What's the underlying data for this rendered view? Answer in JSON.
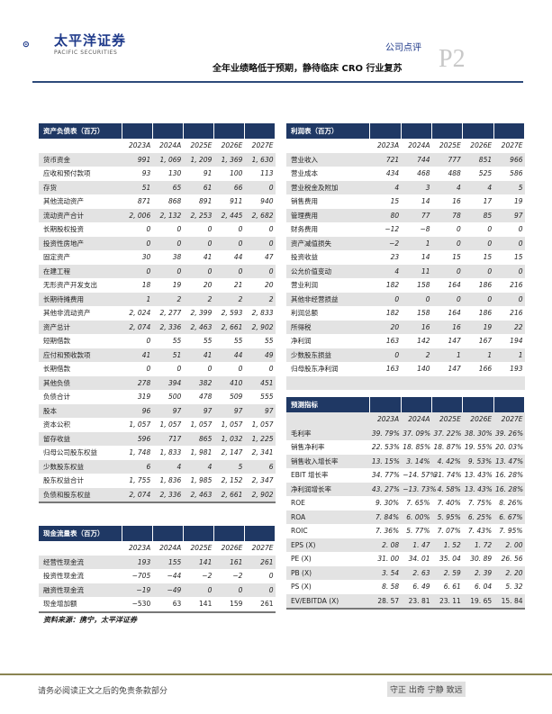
{
  "header": {
    "logo_cn": "太平洋证券",
    "logo_en": "PACIFIC SECURITIES",
    "report_type": "公司点评",
    "subtitle": "全年业绩略低于预期，静待临床 CRO 行业复苏",
    "page": "P2"
  },
  "colors": {
    "header_bg": "#1f3864",
    "shade": "#e3e3e3",
    "logo_red": "#e0262b",
    "logo_blue": "#1f3a8a"
  },
  "years": [
    "2023A",
    "2024A",
    "2025E",
    "2026E",
    "2027E"
  ],
  "balance_sheet": {
    "title": "资产负债表（百万）",
    "rows": [
      [
        "货币资金",
        "991",
        "1, 069",
        "1, 209",
        "1, 369",
        "1, 630"
      ],
      [
        "应收和预付款项",
        "93",
        "130",
        "91",
        "100",
        "113"
      ],
      [
        "存货",
        "51",
        "65",
        "61",
        "66",
        "0"
      ],
      [
        "其他流动资产",
        "871",
        "868",
        "891",
        "911",
        "940"
      ],
      [
        "流动资产合计",
        "2, 006",
        "2, 132",
        "2, 253",
        "2, 445",
        "2, 682"
      ],
      [
        "长期股权投资",
        "0",
        "0",
        "0",
        "0",
        "0"
      ],
      [
        "投资性房地产",
        "0",
        "0",
        "0",
        "0",
        "0"
      ],
      [
        "固定资产",
        "30",
        "38",
        "41",
        "44",
        "47"
      ],
      [
        "在建工程",
        "0",
        "0",
        "0",
        "0",
        "0"
      ],
      [
        "无形资产开发支出",
        "18",
        "19",
        "20",
        "21",
        "20"
      ],
      [
        "长期待摊费用",
        "1",
        "2",
        "2",
        "2",
        "2"
      ],
      [
        "其他非流动资产",
        "2, 024",
        "2, 277",
        "2, 399",
        "2, 593",
        "2, 833"
      ],
      [
        "资产总计",
        "2, 074",
        "2, 336",
        "2, 463",
        "2, 661",
        "2, 902"
      ],
      [
        "短期借款",
        "0",
        "55",
        "55",
        "55",
        "55"
      ],
      [
        "应付和预收款项",
        "41",
        "51",
        "41",
        "44",
        "49"
      ],
      [
        "长期借款",
        "0",
        "0",
        "0",
        "0",
        "0"
      ],
      [
        "其他负债",
        "278",
        "394",
        "382",
        "410",
        "451"
      ],
      [
        "负债合计",
        "319",
        "500",
        "478",
        "509",
        "555"
      ],
      [
        "股本",
        "96",
        "97",
        "97",
        "97",
        "97"
      ],
      [
        "资本公积",
        "1, 057",
        "1, 057",
        "1, 057",
        "1, 057",
        "1, 057"
      ],
      [
        "留存收益",
        "596",
        "717",
        "865",
        "1, 032",
        "1, 225"
      ],
      [
        "归母公司股东权益",
        "1, 748",
        "1, 833",
        "1, 981",
        "2, 147",
        "2, 341"
      ],
      [
        "少数股东权益",
        "6",
        "4",
        "4",
        "5",
        "6"
      ],
      [
        "股东权益合计",
        "1, 755",
        "1, 836",
        "1, 985",
        "2, 152",
        "2, 347"
      ],
      [
        "负债和股东权益",
        "2, 074",
        "2, 336",
        "2, 463",
        "2, 661",
        "2, 902"
      ]
    ]
  },
  "cash_flow": {
    "title": "现金流量表（百万）",
    "rows": [
      [
        "经营性现金流",
        "193",
        "155",
        "141",
        "161",
        "261"
      ],
      [
        "投资性现金流",
        "−705",
        "−44",
        "−2",
        "−2",
        "0"
      ],
      [
        "融资性现金流",
        "−19",
        "−49",
        "0",
        "0",
        "0"
      ],
      [
        "现金增加额",
        "−530",
        "63",
        "141",
        "159",
        "261"
      ]
    ]
  },
  "income_statement": {
    "title": "利润表（百万）",
    "rows": [
      [
        "营业收入",
        "721",
        "744",
        "777",
        "851",
        "966"
      ],
      [
        "营业成本",
        "434",
        "468",
        "488",
        "525",
        "586"
      ],
      [
        "营业税金及附加",
        "4",
        "3",
        "4",
        "4",
        "5"
      ],
      [
        "销售费用",
        "15",
        "14",
        "16",
        "17",
        "19"
      ],
      [
        "管理费用",
        "80",
        "77",
        "78",
        "85",
        "97"
      ],
      [
        "财务费用",
        "−12",
        "−8",
        "0",
        "0",
        "0"
      ],
      [
        "资产减值损失",
        "−2",
        "1",
        "0",
        "0",
        "0"
      ],
      [
        "投资收益",
        "23",
        "14",
        "15",
        "15",
        "15"
      ],
      [
        "公允价值变动",
        "4",
        "11",
        "0",
        "0",
        "0"
      ],
      [
        "营业利润",
        "182",
        "158",
        "164",
        "186",
        "216"
      ],
      [
        "其他非经营损益",
        "0",
        "0",
        "0",
        "0",
        "0"
      ],
      [
        "利润总额",
        "182",
        "158",
        "164",
        "186",
        "216"
      ],
      [
        "所得税",
        "20",
        "16",
        "16",
        "19",
        "22"
      ],
      [
        "净利润",
        "163",
        "142",
        "147",
        "167",
        "194"
      ],
      [
        "少数股东损益",
        "0",
        "2",
        "1",
        "1",
        "1"
      ],
      [
        "归母股东净利润",
        "163",
        "140",
        "147",
        "166",
        "193"
      ]
    ]
  },
  "forecast": {
    "title": "预测指标",
    "rows": [
      [
        "毛利率",
        "39. 79%",
        "37. 09%",
        "37. 22%",
        "38. 30%",
        "39. 26%"
      ],
      [
        "销售净利率",
        "22. 53%",
        "18. 85%",
        "18. 87%",
        "19. 55%",
        "20. 03%"
      ],
      [
        "销售收入增长率",
        "13. 15%",
        "3. 14%",
        "4. 42%",
        "9. 53%",
        "13. 47%"
      ],
      [
        "EBIT 增长率",
        "34. 77%",
        "−14. 57%",
        "31. 74%",
        "13. 43%",
        "16. 28%"
      ],
      [
        "净利润增长率",
        "43. 27%",
        "−13. 73%",
        "4. 58%",
        "13. 43%",
        "16. 28%"
      ],
      [
        "ROE",
        "9. 30%",
        "7. 65%",
        "7. 40%",
        "7. 75%",
        "8. 26%"
      ],
      [
        "ROA",
        "7. 84%",
        "6. 00%",
        "5. 95%",
        "6. 25%",
        "6. 67%"
      ],
      [
        "ROIC",
        "7. 36%",
        "5. 77%",
        "7. 07%",
        "7. 43%",
        "7. 95%"
      ],
      [
        "EPS (X)",
        "2. 08",
        "1. 47",
        "1. 52",
        "1. 72",
        "2. 00"
      ],
      [
        "PE (X)",
        "31. 00",
        "34. 01",
        "35. 04",
        "30. 89",
        "26. 56"
      ],
      [
        "PB (X)",
        "3. 54",
        "2. 63",
        "2. 59",
        "2. 39",
        "2. 20"
      ],
      [
        "PS (X)",
        "8. 58",
        "6. 49",
        "6. 61",
        "6. 04",
        "5. 32"
      ],
      [
        "EV/EBITDA (X)",
        "28. 57",
        "23. 81",
        "23. 11",
        "19. 65",
        "15. 84"
      ]
    ]
  },
  "source": "资料来源：携宁，太平洋证券",
  "footer": {
    "disclaimer": "请务必阅读正文之后的免责条款部分",
    "motto": "守正 出奇 宁静 致远"
  }
}
